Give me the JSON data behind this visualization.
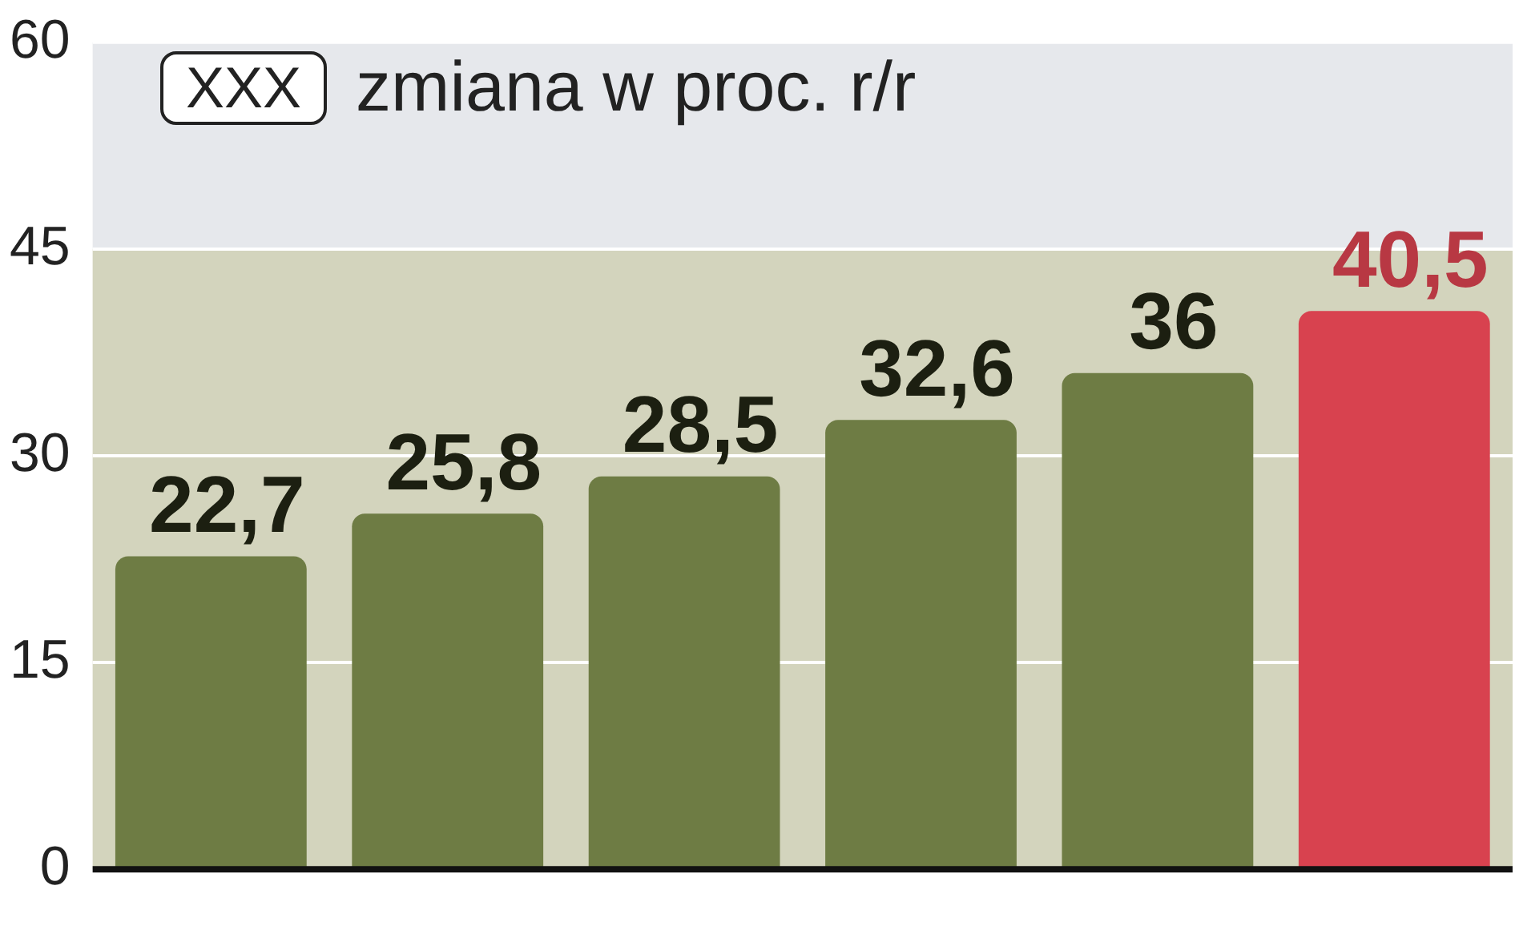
{
  "chart_data": {
    "type": "bar",
    "categories": [
      null,
      null,
      null,
      null,
      null,
      null
    ],
    "values": [
      22.7,
      25.8,
      28.5,
      32.6,
      36,
      40.5
    ],
    "colors": [
      "#6e7c44",
      "#6e7c44",
      "#6e7c44",
      "#6e7c44",
      "#6e7c44",
      "#d8424f"
    ],
    "value_labels": [
      "22,7",
      "25,8",
      "28,5",
      "32,6",
      "36",
      "40,5"
    ],
    "ylim": [
      0,
      60
    ],
    "yticks": [
      0,
      15,
      30,
      45,
      60
    ],
    "grid": "y",
    "bands": [
      {
        "axis": "y",
        "from": 0,
        "to": 45,
        "color": "#d3d4bd"
      },
      {
        "axis": "y",
        "from": 45,
        "to": 60,
        "color": "#e6e8ec"
      }
    ],
    "annotations": [
      "XXX",
      "zmiana w proc. r/r"
    ]
  }
}
